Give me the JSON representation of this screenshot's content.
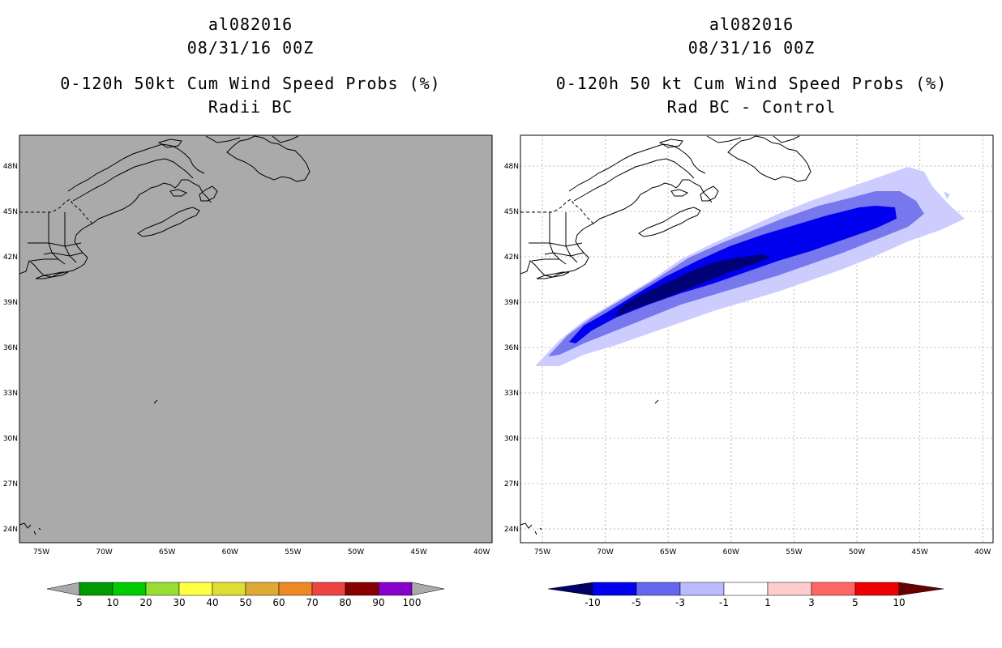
{
  "left_panel": {
    "title_line1": "al082016",
    "title_line2": "08/31/16 00Z",
    "title_line3": "0-120h 50kt Cum Wind Speed Probs (%)",
    "title_line4": "Radii BC",
    "colorbar_labels": [
      "5",
      "10",
      "20",
      "30",
      "40",
      "50",
      "60",
      "70",
      "80",
      "90",
      "100"
    ],
    "colorbar_colors": [
      "#009900",
      "#00cc00",
      "#99dd33",
      "#ffff44",
      "#dddd33",
      "#ddaa33",
      "#ee8822",
      "#ee4444",
      "#880000",
      "#8800cc"
    ],
    "fill_color": "#aaaaaa"
  },
  "right_panel": {
    "title_line1": "al082016",
    "title_line2": "08/31/16 00Z",
    "title_line3": "0-120h 50 kt Cum Wind Speed Probs (%)",
    "title_line4": "Rad BC - Control",
    "colorbar_labels": [
      "-10",
      "-5",
      "-3",
      "-1",
      "1",
      "3",
      "5",
      "10"
    ],
    "colorbar_colors": [
      "#0000ee",
      "#6666ee",
      "#bbbbff",
      "#ffffff",
      "#ffcccc",
      "#ff6666",
      "#ee0000"
    ],
    "colorbar_end_colors": [
      "#000066",
      "#660000"
    ]
  },
  "map": {
    "lon_labels": [
      "75W",
      "70W",
      "65W",
      "60W",
      "55W",
      "50W",
      "45W",
      "40W"
    ],
    "lat_labels": [
      "48N",
      "45N",
      "42N",
      "39N",
      "36N",
      "33N",
      "30N",
      "27N",
      "24N"
    ]
  }
}
